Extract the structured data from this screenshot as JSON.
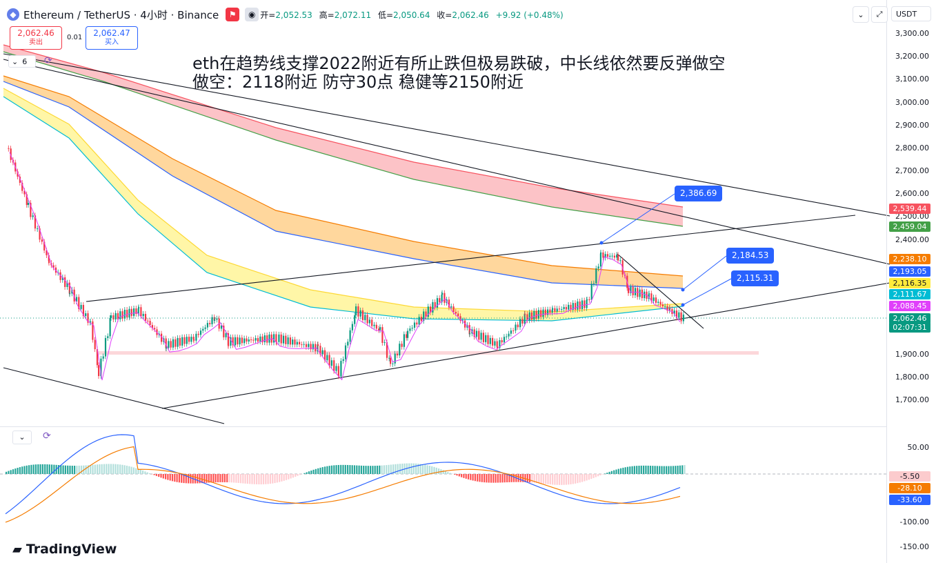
{
  "header": {
    "coin_icon": "ethereum-icon",
    "symbol": "Ethereum / TetherUS · 4小时 · Binance",
    "ohlc": {
      "open_label": "开=",
      "open": "2,052.53",
      "high_label": "高=",
      "high": "2,072.11",
      "low_label": "低=",
      "low": "2,050.64",
      "close_label": "收=",
      "close": "2,062.46",
      "change": "+9.92 (+0.48%)"
    },
    "currency": "USDT"
  },
  "trade": {
    "sell_price": "2,062.46",
    "sell_label": "卖出",
    "spread": "0.01",
    "buy_price": "2,062.47",
    "buy_label": "买入"
  },
  "indicator_row": {
    "count": "6"
  },
  "annotation": {
    "line1": "eth在趋势线支撑2022附近有所止跌但极易跌破，中长线依然要反弹做空",
    "line2": "做空：2118附近 防守30点 稳健等2150附近"
  },
  "callouts": [
    "2,386.69",
    "2,184.53",
    "2,115.31"
  ],
  "price_axis": [
    "3,300.00",
    "3,200.00",
    "3,100.00",
    "3,000.00",
    "2,900.00",
    "2,800.00",
    "2,700.00",
    "2,600.00",
    "2,500.00",
    "2,400.00",
    "1,900.00",
    "1,800.00",
    "1,700.00"
  ],
  "price_tags": [
    {
      "value": "2,539.44",
      "color": "#f7525f"
    },
    {
      "value": "2,459.04",
      "color": "#43a047"
    },
    {
      "value": "2,238.10",
      "color": "#f57c00"
    },
    {
      "value": "2,193.05",
      "color": "#2962ff"
    },
    {
      "value": "2,116.35",
      "color": "#ffeb3b"
    },
    {
      "value": "2,111.67",
      "color": "#00bcd4"
    },
    {
      "value": "2,088.45",
      "color": "#e040fb"
    },
    {
      "value": "2,062.46",
      "color": "#089981"
    },
    {
      "value": "02:07:31",
      "color": "#089981"
    }
  ],
  "macd_axis": [
    "50.00",
    "-100.00",
    "-150.00"
  ],
  "macd_tags": [
    {
      "value": "-5.50",
      "color": "#fccbcd",
      "text_color": "#131722"
    },
    {
      "value": "-28.10",
      "color": "#f57c00",
      "text_color": "#ffffff"
    },
    {
      "value": "-33.60",
      "color": "#2962ff",
      "text_color": "#ffffff"
    }
  ],
  "logo": "TradingView",
  "colors": {
    "up": "#089981",
    "down": "#f23645",
    "accent": "#2962ff"
  },
  "chart_data": {
    "type": "candlestick",
    "series_shown": [
      "price",
      "moving average ribbons",
      "trendlines",
      "MACD"
    ],
    "ylim": [
      1650,
      3350
    ],
    "last_price": 2062.46,
    "support_band": 1905,
    "annotated_points": [
      2386.69,
      2184.53,
      2115.31
    ]
  }
}
